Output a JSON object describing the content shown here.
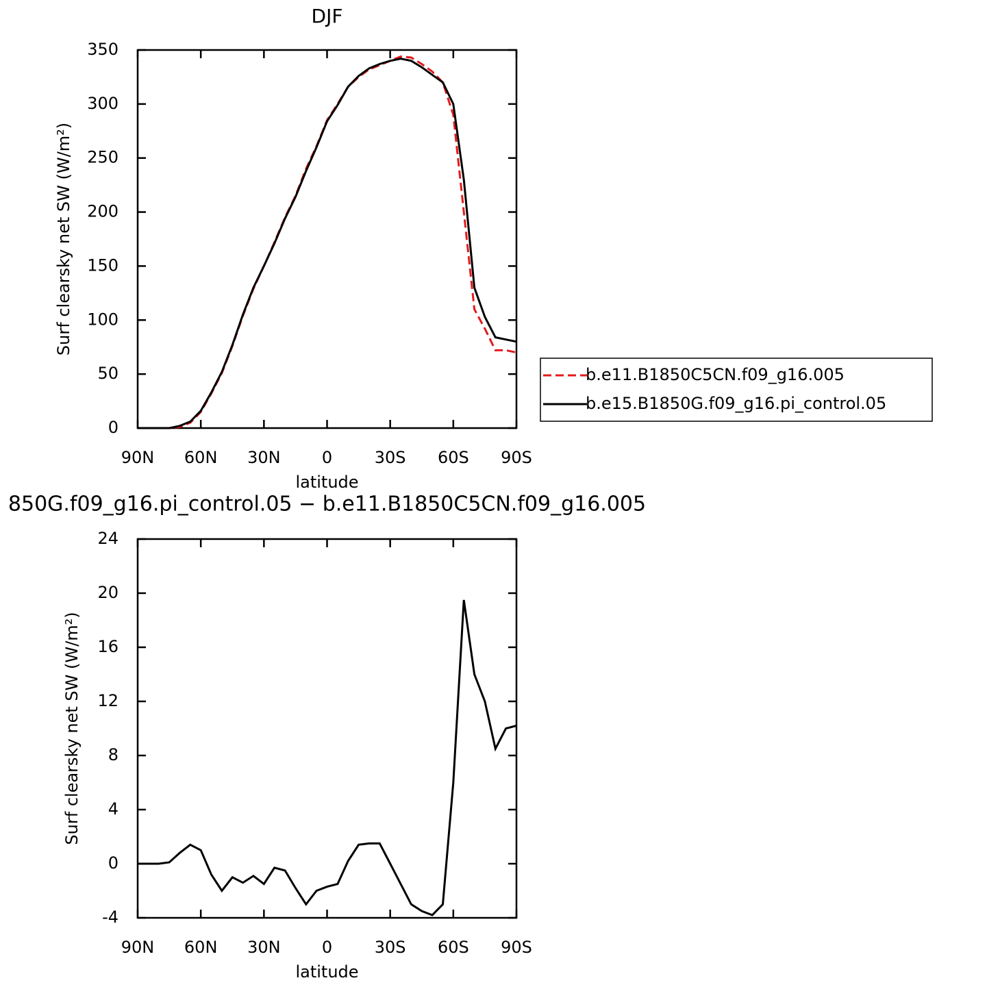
{
  "chart_data": [
    {
      "type": "line",
      "title": "DJF",
      "xlabel": "latitude",
      "ylabel": "Surf clearsky net SW (W/m²)",
      "x": [
        90,
        85,
        80,
        75,
        70,
        65,
        60,
        55,
        50,
        45,
        40,
        35,
        30,
        25,
        20,
        15,
        10,
        5,
        0,
        -5,
        -10,
        -15,
        -20,
        -25,
        -30,
        -35,
        -40,
        -45,
        -50,
        -55,
        -60,
        -65,
        -70,
        -75,
        -80,
        -85,
        -90
      ],
      "xlim": [
        90,
        -90
      ],
      "xticks": [
        {
          "value": 90,
          "label": "90N"
        },
        {
          "value": 60,
          "label": "60N"
        },
        {
          "value": 30,
          "label": "30N"
        },
        0,
        {
          "value": -30,
          "label": "30S"
        },
        {
          "value": -60,
          "label": "60S"
        },
        {
          "value": -90,
          "label": "90S"
        }
      ],
      "ylim": [
        0,
        350
      ],
      "yticks": [
        0,
        50,
        100,
        150,
        200,
        250,
        300,
        350
      ],
      "legend": "right",
      "series": [
        {
          "name": "b.e11.B1850C5CN.f09_g16.005",
          "color": "#e41a1c",
          "dashed": true,
          "values": [
            0,
            0,
            0,
            0,
            1,
            5,
            15,
            32,
            51,
            76,
            104,
            129,
            150,
            172,
            195,
            215,
            240,
            261,
            285,
            300,
            316,
            325,
            332,
            336,
            340,
            344,
            343,
            337,
            330,
            320,
            290,
            200,
            110,
            92,
            72,
            72,
            70
          ]
        },
        {
          "name": "b.e15.B1850G.f09_g16.pi_control.05",
          "color": "#000000",
          "dashed": false,
          "values": [
            0,
            0,
            0,
            0,
            2,
            6,
            16,
            33,
            52,
            77,
            105,
            130,
            150,
            171,
            194,
            214,
            238,
            260,
            284,
            299,
            316,
            326,
            333,
            337,
            340,
            342,
            340,
            334,
            327,
            320,
            300,
            230,
            130,
            103,
            84,
            82,
            80
          ]
        }
      ]
    },
    {
      "type": "line",
      "title": "850G.f09_g16.pi_control.05 − b.e11.B1850C5CN.f09_g16.005",
      "xlabel": "latitude",
      "ylabel": "Surf clearsky net SW (W/m²)",
      "x": [
        90,
        85,
        80,
        75,
        70,
        65,
        60,
        55,
        50,
        45,
        40,
        35,
        30,
        25,
        20,
        15,
        10,
        5,
        0,
        -5,
        -10,
        -15,
        -20,
        -25,
        -30,
        -35,
        -40,
        -45,
        -50,
        -55,
        -60,
        -65,
        -70,
        -75,
        -80,
        -85,
        -90
      ],
      "xlim": [
        90,
        -90
      ],
      "xticks": [
        {
          "value": 90,
          "label": "90N"
        },
        {
          "value": 60,
          "label": "60N"
        },
        {
          "value": 30,
          "label": "30N"
        },
        0,
        {
          "value": -30,
          "label": "30S"
        },
        {
          "value": -60,
          "label": "60S"
        },
        {
          "value": -90,
          "label": "90S"
        }
      ],
      "ylim": [
        -4,
        24
      ],
      "yticks": [
        -4,
        0,
        4,
        8,
        12,
        16,
        20,
        24
      ],
      "series": [
        {
          "color": "#000000",
          "dashed": false,
          "values": [
            0,
            0,
            0,
            0.1,
            0.8,
            1.4,
            1.0,
            -0.8,
            -2.0,
            -1.0,
            -1.4,
            -0.9,
            -1.5,
            -0.3,
            -0.5,
            -1.8,
            -3.0,
            -2.0,
            -1.7,
            -1.5,
            0.2,
            1.4,
            1.5,
            1.5,
            0,
            -1.5,
            -3.0,
            -3.5,
            -3.8,
            -3.0,
            6,
            19.5,
            14,
            12,
            8.5,
            10,
            10.2
          ]
        }
      ]
    }
  ]
}
